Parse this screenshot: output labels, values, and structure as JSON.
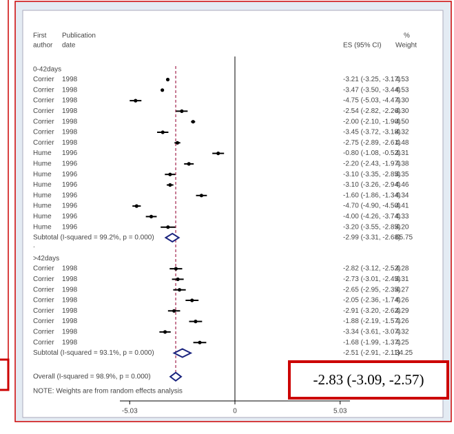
{
  "chart_data": {
    "type": "forest",
    "headers": {
      "author": [
        "First",
        "author"
      ],
      "date": [
        "Publication",
        "date"
      ],
      "es": "ES (95% CI)",
      "weight": [
        "%",
        "Weight"
      ]
    },
    "xlim": [
      -5.5,
      5.5
    ],
    "xticks": [
      -5.03,
      0,
      5.03
    ],
    "groups": [
      {
        "name": "0-42days",
        "studies": [
          {
            "author": "Corrier",
            "date": 1998,
            "es": -3.21,
            "lo": -3.25,
            "hi": -3.17,
            "es_label": "-3.21 (-3.25, -3.17)",
            "weight": "4.53"
          },
          {
            "author": "Corrier",
            "date": 1998,
            "es": -3.47,
            "lo": -3.5,
            "hi": -3.44,
            "es_label": "-3.47 (-3.50, -3.44)",
            "weight": "4.53"
          },
          {
            "author": "Corrier",
            "date": 1998,
            "es": -4.75,
            "lo": -5.03,
            "hi": -4.47,
            "es_label": "-4.75 (-5.03, -4.47)",
            "weight": "4.30"
          },
          {
            "author": "Corrier",
            "date": 1998,
            "es": -2.54,
            "lo": -2.82,
            "hi": -2.26,
            "es_label": "-2.54 (-2.82, -2.26)",
            "weight": "4.30"
          },
          {
            "author": "Corrier",
            "date": 1998,
            "es": -2.0,
            "lo": -2.1,
            "hi": -1.9,
            "es_label": "-2.00 (-2.10, -1.90)",
            "weight": "4.50"
          },
          {
            "author": "Corrier",
            "date": 1998,
            "es": -3.45,
            "lo": -3.72,
            "hi": -3.18,
            "es_label": "-3.45 (-3.72, -3.18)",
            "weight": "4.32"
          },
          {
            "author": "Corrier",
            "date": 1998,
            "es": -2.75,
            "lo": -2.89,
            "hi": -2.61,
            "es_label": "-2.75 (-2.89, -2.61)",
            "weight": "4.48"
          },
          {
            "author": "Hume",
            "date": 1996,
            "es": -0.8,
            "lo": -1.08,
            "hi": -0.52,
            "es_label": "-0.80 (-1.08, -0.52)",
            "weight": "4.31"
          },
          {
            "author": "Hume",
            "date": 1996,
            "es": -2.2,
            "lo": -2.43,
            "hi": -1.97,
            "es_label": "-2.20 (-2.43, -1.97)",
            "weight": "4.38"
          },
          {
            "author": "Hume",
            "date": 1996,
            "es": -3.1,
            "lo": -3.35,
            "hi": -2.85,
            "es_label": "-3.10 (-3.35, -2.85)",
            "weight": "4.35"
          },
          {
            "author": "Hume",
            "date": 1996,
            "es": -3.1,
            "lo": -3.26,
            "hi": -2.94,
            "es_label": "-3.10 (-3.26, -2.94)",
            "weight": "4.46"
          },
          {
            "author": "Hume",
            "date": 1996,
            "es": -1.6,
            "lo": -1.86,
            "hi": -1.34,
            "es_label": "-1.60 (-1.86, -1.34)",
            "weight": "4.34"
          },
          {
            "author": "Hume",
            "date": 1996,
            "es": -4.7,
            "lo": -4.9,
            "hi": -4.5,
            "es_label": "-4.70 (-4.90, -4.50)",
            "weight": "4.41"
          },
          {
            "author": "Hume",
            "date": 1996,
            "es": -4.0,
            "lo": -4.26,
            "hi": -3.74,
            "es_label": "-4.00 (-4.26, -3.74)",
            "weight": "4.33"
          },
          {
            "author": "Hume",
            "date": 1996,
            "es": -3.2,
            "lo": -3.55,
            "hi": -2.85,
            "es_label": "-3.20 (-3.55, -2.85)",
            "weight": "4.20"
          }
        ],
        "subtotal": {
          "label": "Subtotal  (I-squared = 99.2%, p = 0.000)",
          "es": -2.99,
          "lo": -3.31,
          "hi": -2.68,
          "es_label": "-2.99 (-3.31, -2.68)",
          "weight": "65.75"
        }
      },
      {
        "name": ">42days",
        "studies": [
          {
            "author": "Corrier",
            "date": 1998,
            "es": -2.82,
            "lo": -3.12,
            "hi": -2.52,
            "es_label": "-2.82 (-3.12, -2.52)",
            "weight": "4.28"
          },
          {
            "author": "Corrier",
            "date": 1998,
            "es": -2.73,
            "lo": -3.01,
            "hi": -2.45,
            "es_label": "-2.73 (-3.01, -2.45)",
            "weight": "4.31"
          },
          {
            "author": "Corrier",
            "date": 1998,
            "es": -2.65,
            "lo": -2.95,
            "hi": -2.35,
            "es_label": "-2.65 (-2.95, -2.35)",
            "weight": "4.27"
          },
          {
            "author": "Corrier",
            "date": 1998,
            "es": -2.05,
            "lo": -2.36,
            "hi": -1.74,
            "es_label": "-2.05 (-2.36, -1.74)",
            "weight": "4.26"
          },
          {
            "author": "Corrier",
            "date": 1998,
            "es": -2.91,
            "lo": -3.2,
            "hi": -2.62,
            "es_label": "-2.91 (-3.20, -2.62)",
            "weight": "4.29"
          },
          {
            "author": "Corrier",
            "date": 1998,
            "es": -1.88,
            "lo": -2.19,
            "hi": -1.57,
            "es_label": "-1.88 (-2.19, -1.57)",
            "weight": "4.26"
          },
          {
            "author": "Corrier",
            "date": 1998,
            "es": -3.34,
            "lo": -3.61,
            "hi": -3.07,
            "es_label": "-3.34 (-3.61, -3.07)",
            "weight": "4.32"
          },
          {
            "author": "Corrier",
            "date": 1998,
            "es": -1.68,
            "lo": -1.99,
            "hi": -1.37,
            "es_label": "-1.68 (-1.99, -1.37)",
            "weight": "4.25"
          }
        ],
        "subtotal": {
          "label": "Subtotal  (I-squared = 93.1%, p = 0.000)",
          "es": -2.51,
          "lo": -2.91,
          "hi": -2.11,
          "es_label": "-2.51 (-2.91, -2.11)",
          "weight": "34.25"
        }
      }
    ],
    "group_separator": ".",
    "overall": {
      "label": "Overall  (I-squared = 98.9%, p = 0.000)",
      "es": -2.83,
      "lo": -3.09,
      "hi": -2.57,
      "es_label": "-2.83 (-3.09, -2.57)"
    },
    "note": "NOTE: Weights are from random effects analysis"
  }
}
